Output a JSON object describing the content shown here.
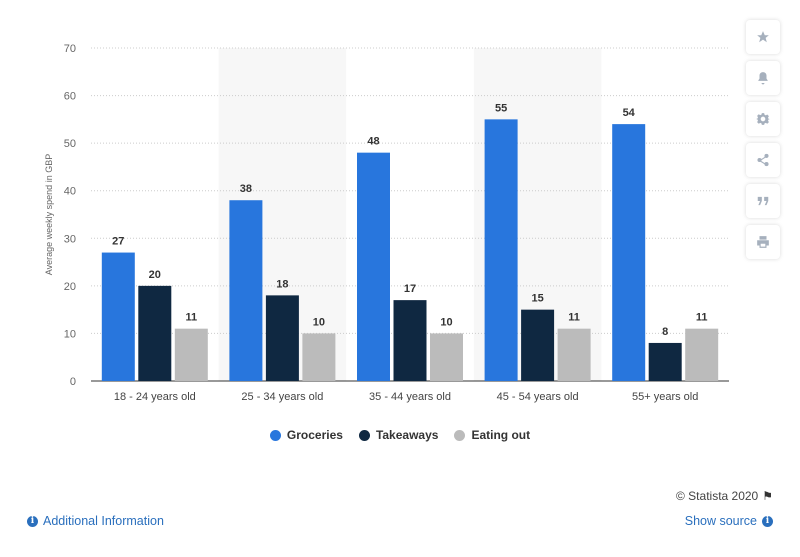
{
  "chart_data": {
    "type": "bar",
    "categories": [
      "18 - 24 years old",
      "25 - 34 years old",
      "35 - 44 years old",
      "45 - 54 years old",
      "55+ years old"
    ],
    "series": [
      {
        "name": "Groceries",
        "color": "#2876dd",
        "values": [
          27,
          38,
          48,
          55,
          54
        ]
      },
      {
        "name": "Takeaways",
        "color": "#0f2841",
        "values": [
          20,
          18,
          17,
          15,
          8
        ]
      },
      {
        "name": "Eating out",
        "color": "#bbbbbb",
        "values": [
          11,
          10,
          10,
          11,
          11
        ]
      }
    ],
    "ylabel": "Average weekly spend in GBP",
    "xlabel": "",
    "ylim": [
      0,
      70
    ],
    "yticks": [
      0,
      10,
      20,
      30,
      40,
      50,
      60,
      70
    ],
    "grid": true,
    "legend_position": "bottom"
  },
  "legend": {
    "items": [
      {
        "label": "Groceries",
        "color": "#2876dd"
      },
      {
        "label": "Takeaways",
        "color": "#0f2841"
      },
      {
        "label": "Eating out",
        "color": "#bbbbbb"
      }
    ]
  },
  "toolbar": {
    "buttons": [
      "star-icon",
      "bell-icon",
      "gear-icon",
      "share-icon",
      "quote-icon",
      "print-icon"
    ]
  },
  "footer": {
    "credit": "© Statista 2020",
    "additional_info": "Additional Information",
    "show_source": "Show source"
  }
}
